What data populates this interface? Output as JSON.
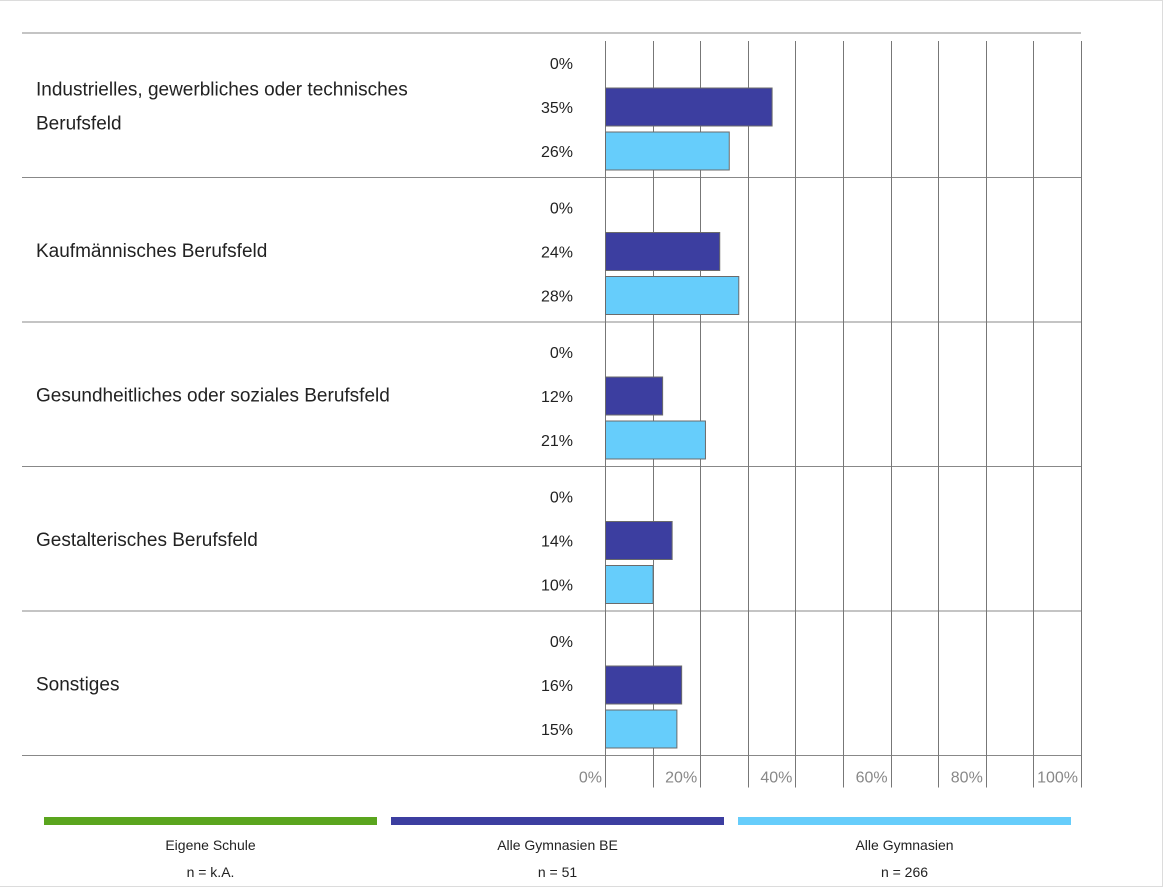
{
  "chart_data": {
    "type": "bar",
    "orientation": "horizontal",
    "categories": [
      [
        "Industrielles, gewerbliches oder technisches",
        "Berufsfeld"
      ],
      [
        "Kaufmännisches Berufsfeld"
      ],
      [
        "Gesundheitliches oder soziales Berufsfeld"
      ],
      [
        "Gestalterisches Berufsfeld"
      ],
      [
        "Sonstiges"
      ]
    ],
    "series": [
      {
        "name": "Eigene Schule",
        "n_label": "n = k.A.",
        "color": "#5aa51e",
        "values": [
          0,
          0,
          0,
          0,
          0
        ]
      },
      {
        "name": "Alle Gymnasien BE",
        "n_label": "n = 51",
        "color": "#3c3ea0",
        "values": [
          35,
          24,
          12,
          14,
          16
        ]
      },
      {
        "name": "Alle Gymnasien",
        "n_label": "n = 266",
        "color": "#66cdfb",
        "values": [
          26,
          28,
          21,
          10,
          15
        ]
      }
    ],
    "value_suffix": "%",
    "xlim": [
      0,
      100
    ],
    "xticks": [
      0,
      20,
      40,
      60,
      80,
      100
    ],
    "xtick_labels": [
      "0%",
      "20%",
      "40%",
      "60%",
      "80%",
      "100%"
    ],
    "grid": true,
    "legend_position": "bottom"
  }
}
